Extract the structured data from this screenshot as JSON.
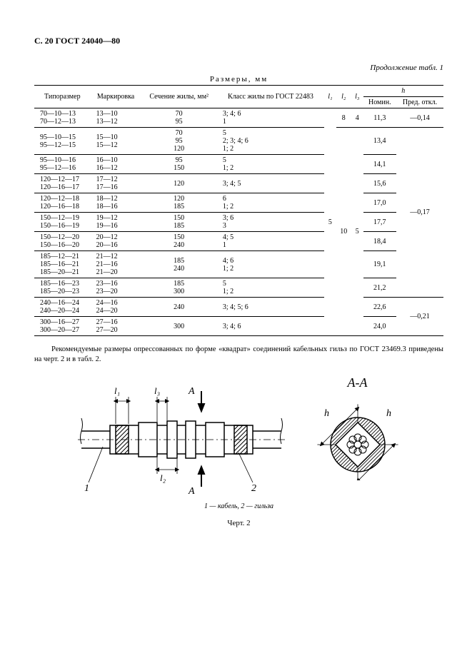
{
  "header": "С. 20 ГОСТ 24040—80",
  "continuation": "Продолжение табл. 1",
  "tableCaption": "Размеры, мм",
  "headers": {
    "c1": "Типоразмер",
    "c2": "Маркировка",
    "c3": "Сечение жилы, мм²",
    "c4": "Класс жилы по ГОСТ 22483",
    "c5": "l₁",
    "c6": "l₂",
    "c7": "l₃",
    "c8": "h",
    "c8a": "Номин.",
    "c8b": "Пред. откл."
  },
  "rows": [
    {
      "tiporazmer": "70—10—13\n70—12—13",
      "mark": "13—10\n13—12",
      "sech": "70\n95",
      "klass": "3; 4; 6\n1",
      "l1": "",
      "l2": "8",
      "l3": "4",
      "nomin": "11,3",
      "otkl": "—0,14"
    },
    {
      "tiporazmer": "95—10—15\n95—12—15",
      "mark": "15—10\n15—12",
      "sech": "70\n95\n120",
      "klass": "5\n2; 3; 4; 6\n1; 2",
      "nomin": "13,4"
    },
    {
      "tiporazmer": "95—10—16\n95—12—16",
      "mark": "16—10\n16—12",
      "sech": "95\n150",
      "klass": "5\n1; 2",
      "nomin": "14,1"
    },
    {
      "tiporazmer": "120—12—17\n120—16—17",
      "mark": "17—12\n17—16",
      "sech": "120",
      "klass": "3; 4; 5",
      "nomin": "15,6"
    },
    {
      "tiporazmer": "120—12—18\n120—16—18",
      "mark": "18—12\n18—16",
      "sech": "120\n185",
      "klass": "6\n1; 2",
      "nomin": "17,0"
    },
    {
      "tiporazmer": "150—12—19\n150—16—19",
      "mark": "19—12\n19—16",
      "sech": "150\n185",
      "klass": "3; 6\n3",
      "nomin": "17,7"
    },
    {
      "tiporazmer": "150—12—20\n150—16—20",
      "mark": "20—12\n20—16",
      "sech": "150\n240",
      "klass": "4; 5\n1",
      "nomin": "18,4"
    },
    {
      "tiporazmer": "185—12—21\n185—16—21\n185—20—21",
      "mark": "21—12\n21—16\n21—20",
      "sech": "185\n240",
      "klass": "4; 6\n1; 2",
      "nomin": "19,1"
    },
    {
      "tiporazmer": "185—16—23\n185—20—23",
      "mark": "23—16\n23—20",
      "sech": "185\n300",
      "klass": "5\n1; 2",
      "nomin": "21,2"
    },
    {
      "tiporazmer": "240—16—24\n240—20—24",
      "mark": "24—16\n24—20",
      "sech": "240",
      "klass": "3; 4; 5; 6",
      "nomin": "22,6"
    },
    {
      "tiporazmer": "300—16—27\n300—20—27",
      "mark": "27—16\n27—20",
      "sech": "300",
      "klass": "3; 4; 6",
      "nomin": "24,0"
    }
  ],
  "spanL1": "5",
  "spanL2": "10",
  "spanL3": "5",
  "spanOtkl1": "—0,17",
  "spanOtkl2": "—0,21",
  "paragraph": "Рекомендуемые размеры опрессованных по форме «квадрат» соединений кабельных гильз по ГОСТ 23469.3 приведены на черт. 2 и в табл. 2.",
  "figSection": "А-А",
  "figDim_l1": "l₁",
  "figDim_l2": "l₂",
  "figDim_l3": "l₃",
  "figDim_A": "А",
  "figDim_h": "h",
  "figRef1": "1",
  "figRef2": "2",
  "figLegend": "1 — кабель, 2 — гильза",
  "figNum": "Черт. 2",
  "colors": {
    "text": "#000000",
    "bg": "#ffffff",
    "line": "#000000",
    "hatch": "#000000"
  }
}
